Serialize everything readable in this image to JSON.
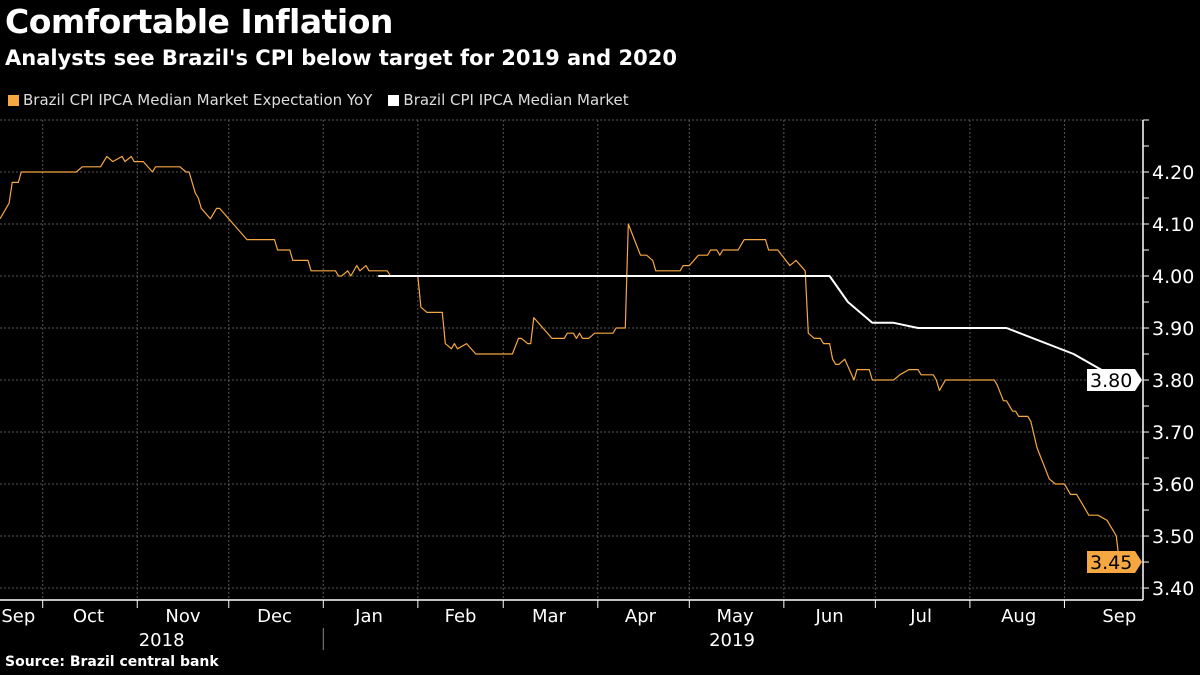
{
  "chart_data": {
    "type": "line",
    "title": "Comfortable Inflation",
    "subtitle": "Analysts see Brazil's CPI below target for 2019 and 2020",
    "source": "Source: Brazil central bank",
    "x_unit": "days since 2018-09-17",
    "ylim": [
      3.377,
      4.3
    ],
    "y_ticks": [
      "4.20",
      "4.10",
      "4.00",
      "3.90",
      "3.80",
      "3.70",
      "3.60",
      "3.50",
      "3.40"
    ],
    "y_tick_values": [
      4.2,
      4.1,
      4.0,
      3.9,
      3.8,
      3.7,
      3.6,
      3.5,
      3.4
    ],
    "month_boundaries": [
      14,
      45,
      75,
      106,
      137,
      165,
      196,
      226,
      257,
      287,
      318,
      349
    ],
    "month_labels": [
      {
        "label": "Sep",
        "center": 6
      },
      {
        "label": "Oct",
        "center": 29
      },
      {
        "label": "Nov",
        "center": 60
      },
      {
        "label": "Dec",
        "center": 90
      },
      {
        "label": "Jan",
        "center": 121
      },
      {
        "label": "Feb",
        "center": 151
      },
      {
        "label": "Mar",
        "center": 180
      },
      {
        "label": "Apr",
        "center": 210
      },
      {
        "label": "May",
        "center": 241
      },
      {
        "label": "Jun",
        "center": 272
      },
      {
        "label": "Jul",
        "center": 302
      },
      {
        "label": "Aug",
        "center": 334
      },
      {
        "label": "Sep",
        "center": 367
      }
    ],
    "year_labels": [
      {
        "label": "2018",
        "center": 53
      },
      {
        "label": "2019",
        "center": 240
      }
    ],
    "year_separator": 106,
    "grid": true,
    "legend_position": "top-left",
    "series": [
      {
        "name": "Brazil CPI IPCA Median Market Expectation YoY",
        "color": "#f5a742",
        "last_value": "3.45",
        "points": [
          [
            0,
            4.11
          ],
          [
            3,
            4.14
          ],
          [
            4,
            4.18
          ],
          [
            6,
            4.18
          ],
          [
            7,
            4.2
          ],
          [
            25,
            4.2
          ],
          [
            27,
            4.21
          ],
          [
            33,
            4.21
          ],
          [
            35,
            4.23
          ],
          [
            37,
            4.22
          ],
          [
            40,
            4.23
          ],
          [
            41,
            4.22
          ],
          [
            43,
            4.23
          ],
          [
            44,
            4.22
          ],
          [
            47,
            4.22
          ],
          [
            50,
            4.2
          ],
          [
            51,
            4.21
          ],
          [
            59,
            4.21
          ],
          [
            61,
            4.2
          ],
          [
            62,
            4.2
          ],
          [
            64,
            4.16
          ],
          [
            65,
            4.15
          ],
          [
            66,
            4.13
          ],
          [
            69,
            4.11
          ],
          [
            71,
            4.13
          ],
          [
            72,
            4.13
          ],
          [
            81,
            4.07
          ],
          [
            90,
            4.07
          ],
          [
            91,
            4.05
          ],
          [
            95,
            4.05
          ],
          [
            96,
            4.03
          ],
          [
            101,
            4.03
          ],
          [
            102,
            4.01
          ],
          [
            110,
            4.01
          ],
          [
            111,
            4.0
          ],
          [
            112,
            4.0
          ],
          [
            114,
            4.01
          ],
          [
            115,
            4.0
          ],
          [
            117,
            4.02
          ],
          [
            118,
            4.01
          ],
          [
            120,
            4.02
          ],
          [
            121,
            4.01
          ],
          [
            127,
            4.01
          ],
          [
            128,
            4.0
          ],
          [
            137,
            4.0
          ],
          [
            138,
            3.94
          ],
          [
            140,
            3.93
          ],
          [
            145,
            3.93
          ],
          [
            146,
            3.87
          ],
          [
            148,
            3.86
          ],
          [
            149,
            3.87
          ],
          [
            150,
            3.86
          ],
          [
            153,
            3.87
          ],
          [
            156,
            3.85
          ],
          [
            168,
            3.85
          ],
          [
            170,
            3.88
          ],
          [
            171,
            3.88
          ],
          [
            173,
            3.87
          ],
          [
            174,
            3.87
          ],
          [
            175,
            3.92
          ],
          [
            181,
            3.88
          ],
          [
            185,
            3.88
          ],
          [
            186,
            3.89
          ],
          [
            188,
            3.89
          ],
          [
            189,
            3.88
          ],
          [
            190,
            3.89
          ],
          [
            191,
            3.88
          ],
          [
            193,
            3.88
          ],
          [
            195,
            3.89
          ],
          [
            201,
            3.89
          ],
          [
            202,
            3.9
          ],
          [
            205,
            3.9
          ],
          [
            206,
            4.1
          ],
          [
            210,
            4.04
          ],
          [
            212,
            4.04
          ],
          [
            214,
            4.03
          ],
          [
            215,
            4.01
          ],
          [
            223,
            4.01
          ],
          [
            224,
            4.02
          ],
          [
            226,
            4.02
          ],
          [
            229,
            4.04
          ],
          [
            232,
            4.04
          ],
          [
            233,
            4.05
          ],
          [
            235,
            4.05
          ],
          [
            236,
            4.04
          ],
          [
            237,
            4.05
          ],
          [
            242,
            4.05
          ],
          [
            244,
            4.07
          ],
          [
            251,
            4.07
          ],
          [
            252,
            4.05
          ],
          [
            255,
            4.05
          ],
          [
            259,
            4.02
          ],
          [
            261,
            4.03
          ],
          [
            264,
            4.01
          ],
          [
            265,
            3.89
          ],
          [
            267,
            3.88
          ],
          [
            269,
            3.88
          ],
          [
            270,
            3.87
          ],
          [
            272,
            3.87
          ],
          [
            273,
            3.84
          ],
          [
            274,
            3.83
          ],
          [
            275,
            3.83
          ],
          [
            277,
            3.84
          ],
          [
            280,
            3.8
          ],
          [
            281,
            3.82
          ],
          [
            285,
            3.82
          ],
          [
            286,
            3.8
          ],
          [
            293,
            3.8
          ],
          [
            295,
            3.81
          ],
          [
            298,
            3.82
          ],
          [
            301,
            3.82
          ],
          [
            302,
            3.81
          ],
          [
            306,
            3.81
          ],
          [
            307,
            3.8
          ],
          [
            308,
            3.78
          ],
          [
            310,
            3.8
          ],
          [
            326,
            3.8
          ],
          [
            327,
            3.79
          ],
          [
            329,
            3.76
          ],
          [
            330,
            3.76
          ],
          [
            332,
            3.74
          ],
          [
            333,
            3.74
          ],
          [
            334,
            3.73
          ],
          [
            337,
            3.73
          ],
          [
            338,
            3.72
          ],
          [
            340,
            3.67
          ],
          [
            344,
            3.61
          ],
          [
            346,
            3.6
          ],
          [
            349,
            3.6
          ],
          [
            351,
            3.58
          ],
          [
            353,
            3.58
          ],
          [
            355,
            3.56
          ],
          [
            357,
            3.54
          ],
          [
            360,
            3.54
          ],
          [
            363,
            3.53
          ],
          [
            365,
            3.51
          ],
          [
            366,
            3.5
          ],
          [
            367,
            3.45
          ]
        ]
      },
      {
        "name": "Brazil CPI IPCA Median Market",
        "color": "#ffffff",
        "last_value": "3.80",
        "points": [
          [
            124,
            4.0
          ],
          [
            272,
            4.0
          ],
          [
            278,
            3.95
          ],
          [
            286,
            3.91
          ],
          [
            293,
            3.91
          ],
          [
            301,
            3.9
          ],
          [
            330,
            3.9
          ],
          [
            352,
            3.85
          ],
          [
            367,
            3.8
          ]
        ]
      }
    ]
  }
}
